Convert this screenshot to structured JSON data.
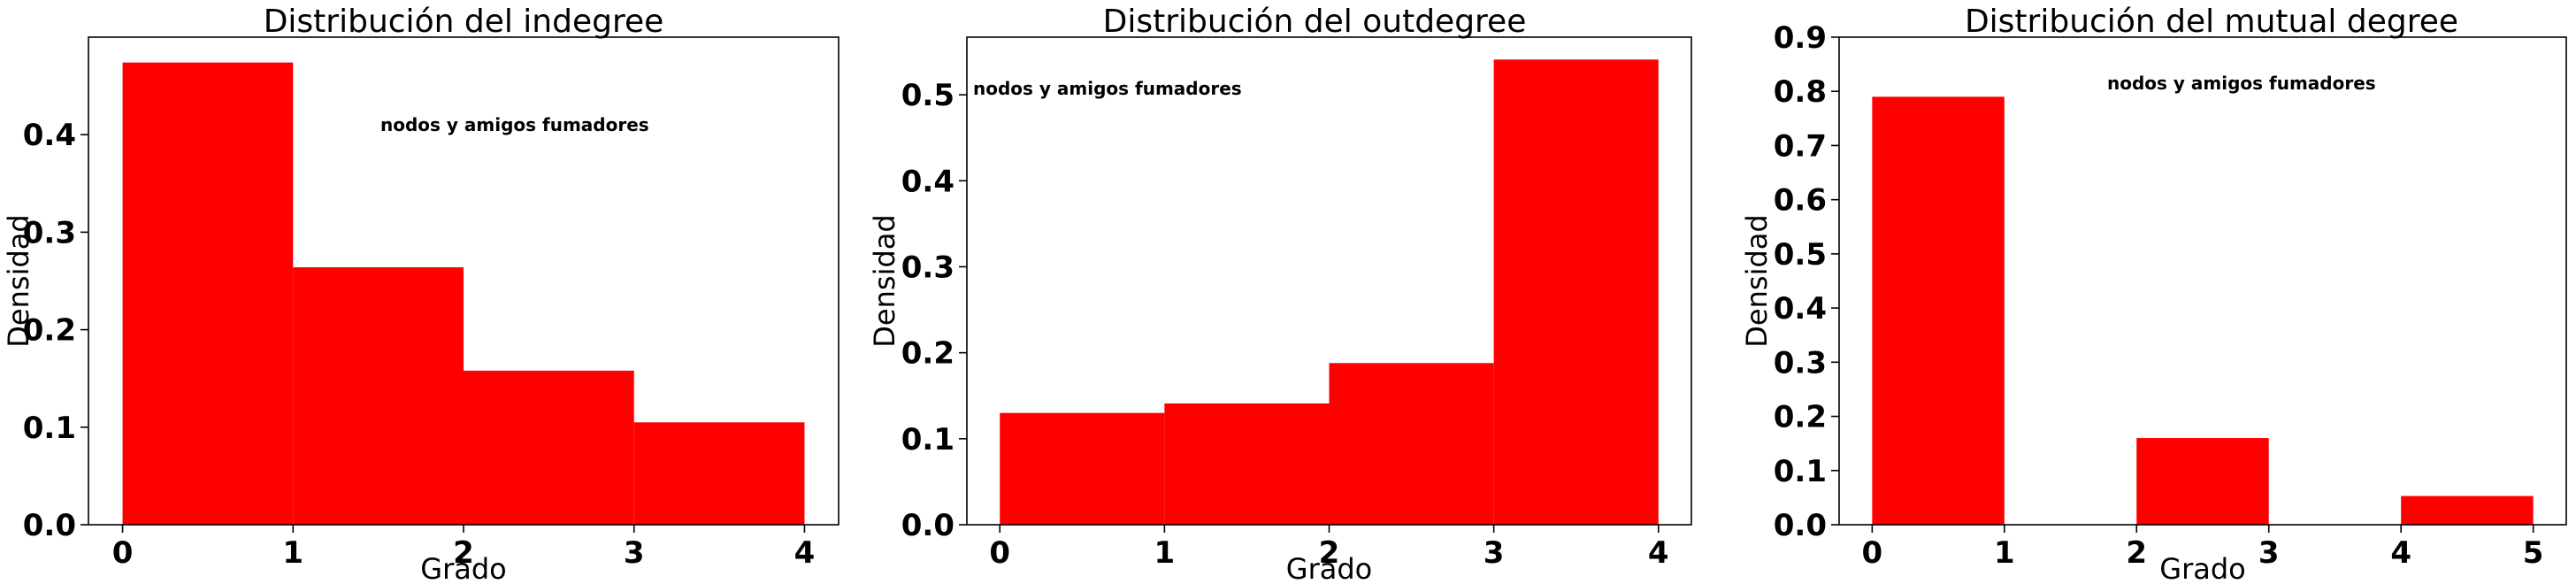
{
  "chart_data": [
    {
      "type": "bar",
      "title": "Distribución del indegree",
      "xlabel": "Grado",
      "ylabel": "Densidad",
      "annotation": "nodos y amigos fumadores",
      "bar_color": "#ff0000",
      "xlim": [
        -0.2,
        4.2
      ],
      "ylim": [
        0,
        0.5
      ],
      "xticks": [
        0,
        1,
        2,
        3,
        4
      ],
      "yticks": [
        0.0,
        0.1,
        0.2,
        0.3,
        0.4
      ],
      "ytick_labels": [
        "0.0",
        "0.1",
        "0.2",
        "0.3",
        "0.4"
      ],
      "bars": [
        {
          "x0": 0,
          "x1": 1,
          "value": 0.474
        },
        {
          "x0": 1,
          "x1": 2,
          "value": 0.264
        },
        {
          "x0": 2,
          "x1": 3,
          "value": 0.158
        },
        {
          "x0": 3,
          "x1": 4,
          "value": 0.105
        }
      ]
    },
    {
      "type": "bar",
      "title": "Distribución del outdegree",
      "xlabel": "Grado",
      "ylabel": "Densidad",
      "annotation": "nodos y amigos fumadores",
      "bar_color": "#ff0000",
      "xlim": [
        -0.2,
        4.2
      ],
      "ylim": [
        0,
        0.567
      ],
      "xticks": [
        0,
        1,
        2,
        3,
        4
      ],
      "yticks": [
        0.0,
        0.1,
        0.2,
        0.3,
        0.4,
        0.5
      ],
      "ytick_labels": [
        "0.0",
        "0.1",
        "0.2",
        "0.3",
        "0.4",
        "0.5"
      ],
      "bars": [
        {
          "x0": 0,
          "x1": 1,
          "value": 0.13
        },
        {
          "x0": 1,
          "x1": 2,
          "value": 0.141
        },
        {
          "x0": 2,
          "x1": 3,
          "value": 0.188
        },
        {
          "x0": 3,
          "x1": 4,
          "value": 0.541
        }
      ]
    },
    {
      "type": "bar",
      "title": "Distribución del mutual degree",
      "xlabel": "Grado",
      "ylabel": "Densidad",
      "annotation": "nodos y amigos fumadores",
      "bar_color": "#ff0000",
      "xlim": [
        -0.25,
        5.25
      ],
      "ylim": [
        0,
        0.9
      ],
      "xticks": [
        0,
        1,
        2,
        3,
        4,
        5
      ],
      "yticks": [
        0.0,
        0.1,
        0.2,
        0.3,
        0.4,
        0.5,
        0.6,
        0.7,
        0.8,
        0.9
      ],
      "ytick_labels": [
        "0.0",
        "0.1",
        "0.2",
        "0.3",
        "0.4",
        "0.5",
        "0.6",
        "0.7",
        "0.8",
        "0.9"
      ],
      "bars": [
        {
          "x0": 0,
          "x1": 1,
          "value": 0.79
        },
        {
          "x0": 2,
          "x1": 3,
          "value": 0.16
        },
        {
          "x0": 4,
          "x1": 5,
          "value": 0.053
        }
      ]
    }
  ]
}
